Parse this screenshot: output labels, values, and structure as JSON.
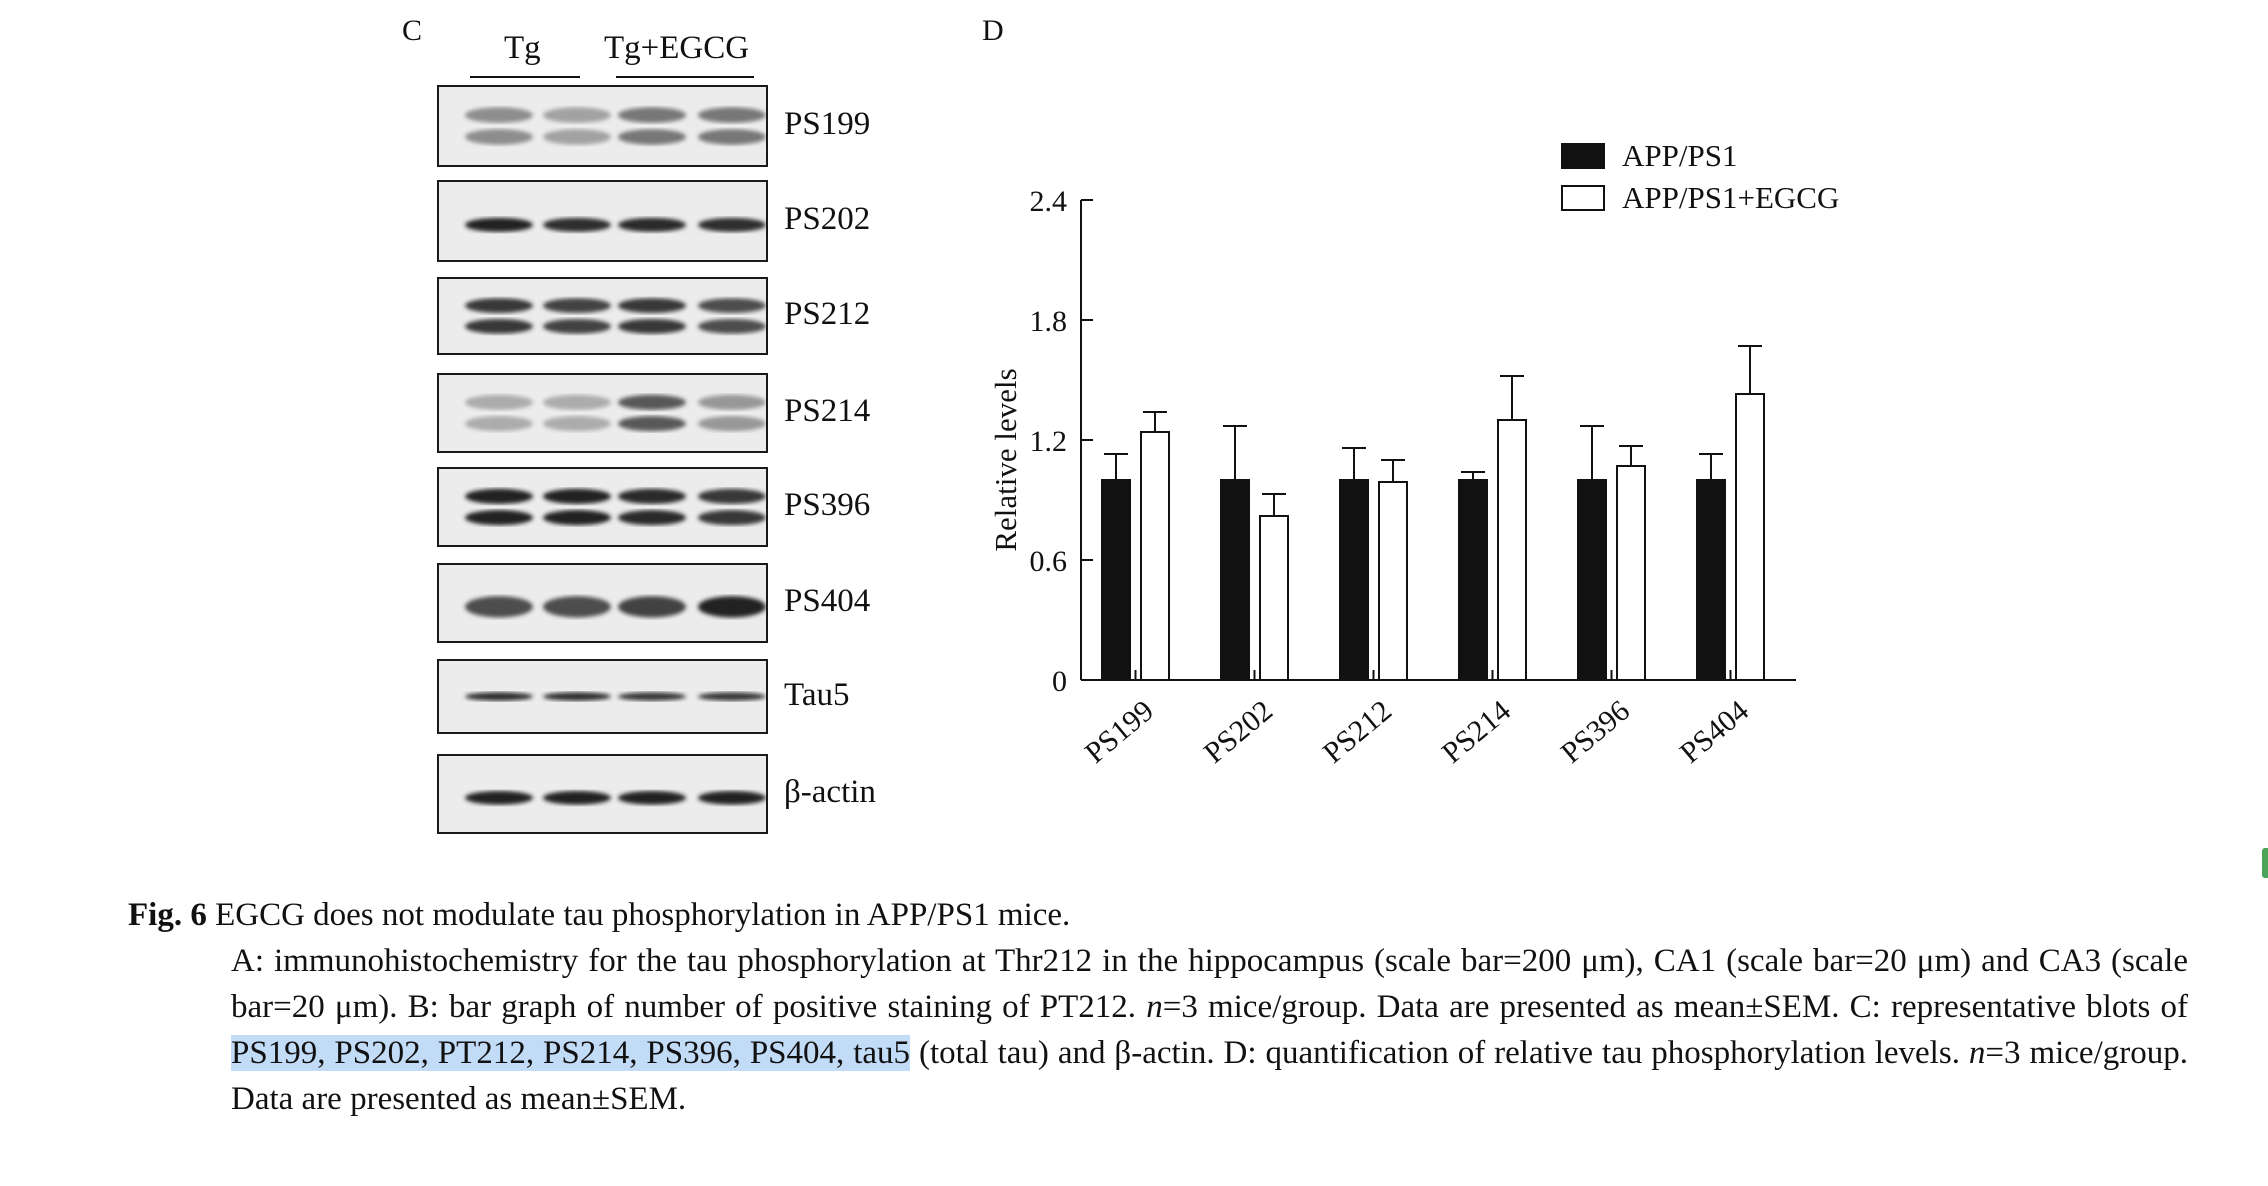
{
  "panel_c": {
    "letter": "C",
    "groups": [
      "Tg",
      "Tg+EGCG"
    ],
    "blots": [
      {
        "label": "PS199",
        "intensity": [
          0.45,
          0.35,
          0.55,
          0.55
        ],
        "style": "double-faint"
      },
      {
        "label": "PS202",
        "intensity": [
          0.95,
          0.9,
          0.92,
          0.9
        ],
        "style": "single"
      },
      {
        "label": "PS212",
        "intensity": [
          0.85,
          0.8,
          0.85,
          0.75
        ],
        "style": "double"
      },
      {
        "label": "PS214",
        "intensity": [
          0.3,
          0.3,
          0.7,
          0.4
        ],
        "style": "double-faint"
      },
      {
        "label": "PS396",
        "intensity": [
          0.95,
          0.95,
          0.92,
          0.85
        ],
        "style": "double"
      },
      {
        "label": "PS404",
        "intensity": [
          0.75,
          0.75,
          0.8,
          0.95
        ],
        "style": "single-wide"
      },
      {
        "label": "Tau5",
        "intensity": [
          0.9,
          0.9,
          0.85,
          0.85
        ],
        "style": "single-thin"
      },
      {
        "label": "β-actin",
        "intensity": [
          0.95,
          0.95,
          0.95,
          0.95
        ],
        "style": "single"
      }
    ]
  },
  "panel_d": {
    "letter": "D"
  },
  "chart_data": {
    "type": "bar",
    "categories": [
      "PS199",
      "PS202",
      "PS212",
      "PS214",
      "PS396",
      "PS404"
    ],
    "series": [
      {
        "name": "APP/PS1",
        "values": [
          1.0,
          1.0,
          1.0,
          1.0,
          1.0,
          1.0
        ],
        "errors": [
          0.13,
          0.27,
          0.16,
          0.04,
          0.27,
          0.13
        ],
        "color": "#111111"
      },
      {
        "name": "APP/PS1+EGCG",
        "values": [
          1.24,
          0.82,
          0.99,
          1.3,
          1.07,
          1.43
        ],
        "errors": [
          0.1,
          0.11,
          0.11,
          0.22,
          0.1,
          0.24
        ],
        "color": "#ffffff"
      }
    ],
    "ylabel": "Relative levels",
    "xlabel": "",
    "ylim": [
      0,
      2.4
    ],
    "yticks": [
      "0",
      "0.6",
      "1.2",
      "1.8",
      "2.4"
    ],
    "legend_position": "top-right",
    "grid": false
  },
  "caption": {
    "fig_number": "Fig. 6",
    "title": "EGCG does not modulate tau phosphorylation in APP/PS1 mice.",
    "part_a": "A: immunohistochemistry for the tau phosphorylation at Thr212 in the hippocampus (scale bar=200 μm), CA1 (scale bar=20 μm) and CA3 (scale bar=20 μm). B: bar graph of number of positive staining of PT212. ",
    "n_italic_1": "n",
    "part_b": "=3 mice/group. Data are presented as mean±SEM. C: representative blots of ",
    "highlighted": "PS199, PS202, PT212, PS214, PS396, PS404, tau5",
    "part_c": " (total tau) and β-actin. D: quantification of relative tau phosphorylation levels. ",
    "n_italic_2": "n",
    "part_d": "=3 mice/group. Data are presented as mean±SEM."
  }
}
